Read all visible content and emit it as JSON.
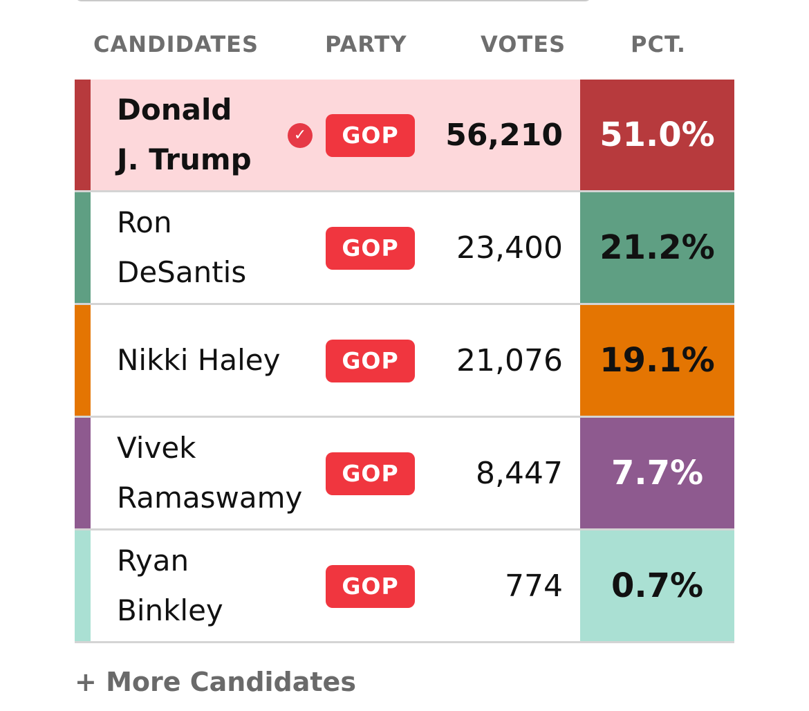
{
  "header": {
    "candidates": "CANDIDATES",
    "party": "PARTY",
    "votes": "VOTES",
    "pct": "PCT."
  },
  "rows": [
    {
      "name_line1": "Donald",
      "name_line2": "J. Trump",
      "winner": true,
      "check_icon": "✓",
      "party": "GOP",
      "votes": "56,210",
      "pct": "51.0%",
      "strip_color": "#b73a3d",
      "pct_bg": "#b73a3d",
      "pct_text_color": "#ffffff",
      "row_bg": "#fdd8db"
    },
    {
      "name_line1": "Ron",
      "name_line2": "DeSantis",
      "winner": false,
      "party": "GOP",
      "votes": "23,400",
      "pct": "21.2%",
      "strip_color": "#5f9f83",
      "pct_bg": "#5f9f83",
      "pct_text_color": "#111111",
      "row_bg": "#ffffff"
    },
    {
      "name_line1": "Nikki Haley",
      "name_line2": "",
      "winner": false,
      "party": "GOP",
      "votes": "21,076",
      "pct": "19.1%",
      "strip_color": "#e47502",
      "pct_bg": "#e47502",
      "pct_text_color": "#111111",
      "row_bg": "#ffffff"
    },
    {
      "name_line1": "Vivek",
      "name_line2": "Ramaswamy",
      "winner": false,
      "party": "GOP",
      "votes": "8,447",
      "pct": "7.7%",
      "strip_color": "#8e5a8f",
      "pct_bg": "#8e5a8f",
      "pct_text_color": "#ffffff",
      "row_bg": "#ffffff"
    },
    {
      "name_line1": "Ryan",
      "name_line2": "Binkley",
      "winner": false,
      "party": "GOP",
      "votes": "774",
      "pct": "0.7%",
      "strip_color": "#aae0d3",
      "pct_bg": "#aae0d3",
      "pct_text_color": "#111111",
      "row_bg": "#ffffff"
    }
  ],
  "more_link": "+ More Candidates",
  "colors": {
    "badge": "#f0363f",
    "check": "#e63946",
    "header_text": "#6e6e6e"
  }
}
